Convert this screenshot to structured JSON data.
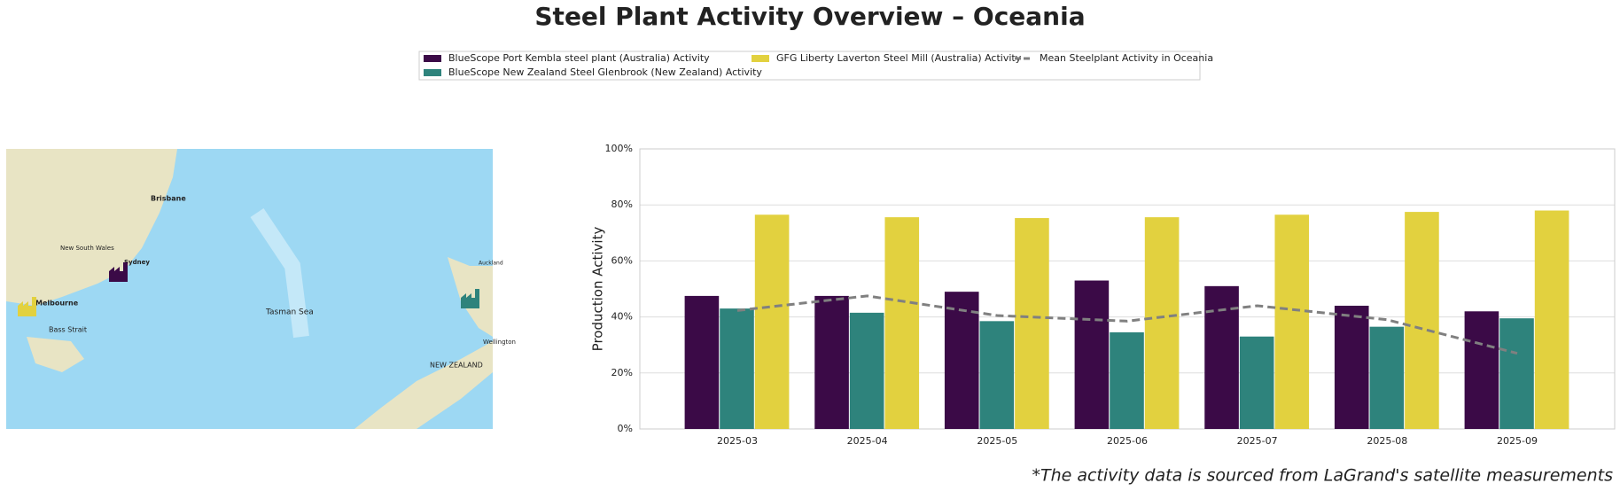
{
  "chart_data": {
    "type": "bar",
    "title": "Steel Plant Activity Overview – Oceania",
    "ylabel": "Production Activity",
    "footnote": "*The activity data is sourced from LaGrand's satellite measurements",
    "categories": [
      "2025-03",
      "2025-04",
      "2025-05",
      "2025-06",
      "2025-07",
      "2025-08",
      "2025-09"
    ],
    "series": [
      {
        "name": "BlueScope Port Kembla steel plant (Australia) Activity",
        "color": "#3b0a47",
        "values": [
          47.5,
          47.5,
          49,
          53,
          51,
          44,
          42
        ]
      },
      {
        "name": "BlueScope New Zealand Steel Glenbrook (New Zealand) Activity",
        "color": "#2e837c",
        "values": [
          43,
          41.5,
          38.5,
          34.5,
          33,
          36.5,
          39.5
        ]
      },
      {
        "name": "GFG Liberty Laverton Steel Mill (Australia) Activity",
        "color": "#e2d13f",
        "values": [
          76.5,
          75.6,
          75.3,
          75.6,
          76.5,
          77.5,
          78
        ]
      },
      {
        "name": "Mean Steelplant Activity in Oceania",
        "color": "#808080",
        "type": "line",
        "dashed": true,
        "values": [
          42.3,
          47.5,
          40.5,
          38.5,
          44,
          39,
          27
        ]
      }
    ],
    "ylim": [
      0,
      100
    ],
    "yticks": [
      {
        "value": 0,
        "label": "0%"
      },
      {
        "value": 20,
        "label": "20%"
      },
      {
        "value": 40,
        "label": "40%"
      },
      {
        "value": 60,
        "label": "60%"
      },
      {
        "value": 80,
        "label": "80%"
      },
      {
        "value": 100,
        "label": "100%"
      }
    ],
    "grid": true,
    "legend": "top",
    "map_labels": [
      "Brisbane",
      "Sydney",
      "Melbourne",
      "Bass Strait",
      "Tasman Sea",
      "NEW ZEALAND",
      "Wellington",
      "Auckland",
      "New South Wales"
    ]
  }
}
